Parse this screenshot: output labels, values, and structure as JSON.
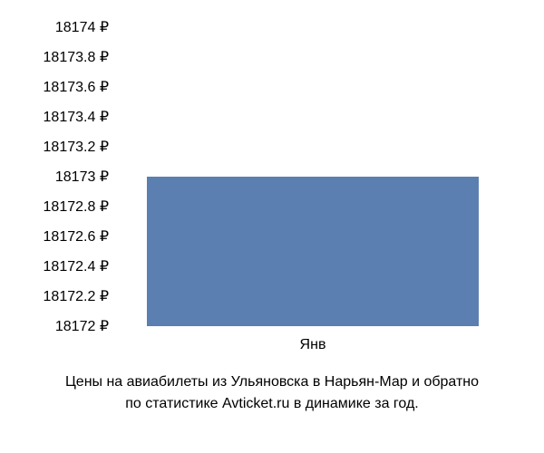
{
  "chart": {
    "type": "bar",
    "ylim": [
      18172,
      18174
    ],
    "ytick_step": 0.2,
    "yticks": [
      {
        "value": 18174,
        "label": "18174 ₽"
      },
      {
        "value": 18173.8,
        "label": "18173.8 ₽"
      },
      {
        "value": 18173.6,
        "label": "18173.6 ₽"
      },
      {
        "value": 18173.4,
        "label": "18173.4 ₽"
      },
      {
        "value": 18173.2,
        "label": "18173.2 ₽"
      },
      {
        "value": 18173,
        "label": "18173 ₽"
      },
      {
        "value": 18172.8,
        "label": "18172.8 ₽"
      },
      {
        "value": 18172.6,
        "label": "18172.6 ₽"
      },
      {
        "value": 18172.4,
        "label": "18172.4 ₽"
      },
      {
        "value": 18172.2,
        "label": "18172.2 ₽"
      },
      {
        "value": 18172,
        "label": "18172 ₽"
      }
    ],
    "categories": [
      "Янв"
    ],
    "values": [
      18173
    ],
    "bar_color": "#5a7fb0",
    "bar_width": 0.85,
    "background_color": "#ffffff",
    "text_color": "#000000",
    "tick_fontsize": 16,
    "caption_fontsize": 16,
    "caption_line1": "Цены на авиабилеты из Ульяновска в Нарьян-Мар и обратно",
    "caption_line2": "по статистике Avticket.ru в динамике за год."
  }
}
